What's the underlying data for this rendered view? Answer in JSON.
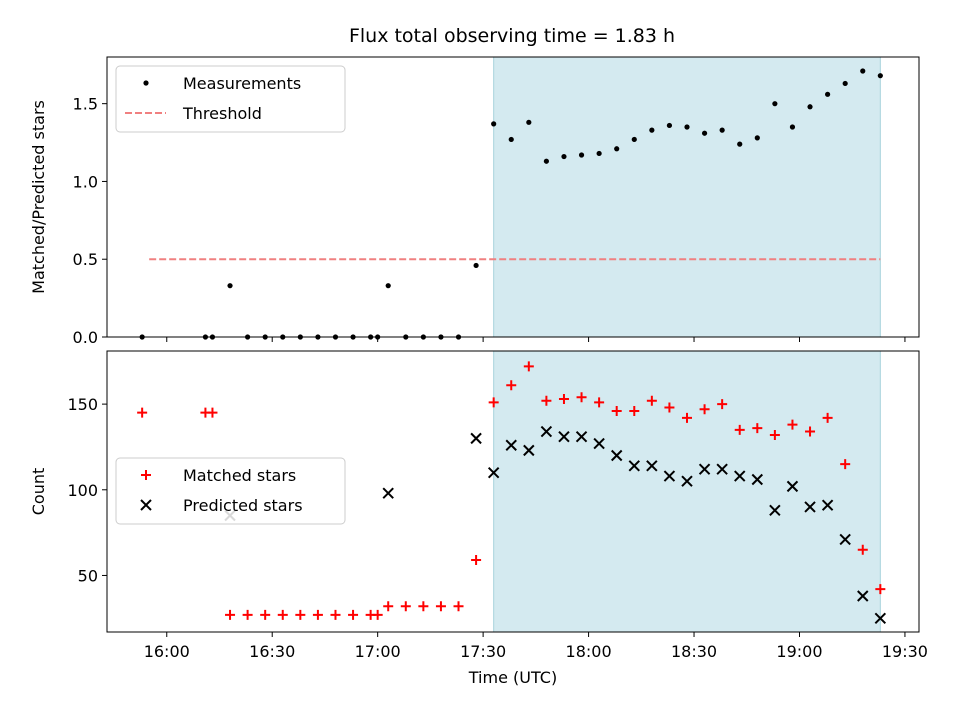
{
  "title": "Flux total observing time = 1.83 h",
  "colors": {
    "shade": "#d4eaf0",
    "shade_edge": "#a8d2dc",
    "threshold": "#f08080",
    "matched": "#ff0000",
    "predicted": "#000000"
  },
  "chart_data": [
    {
      "type": "scatter",
      "ylabel": "Matched/Predicted stars",
      "ylim": [
        0,
        1.8
      ],
      "yticks": [
        0.0,
        0.5,
        1.0,
        1.5
      ],
      "ytick_labels": [
        "0.0",
        "0.5",
        "1.0",
        "1.5"
      ],
      "legend": {
        "placement": "top-left",
        "entries": [
          "Measurements",
          "Threshold"
        ]
      },
      "shaded_region": {
        "x": [
          "17:33",
          "19:23"
        ]
      },
      "threshold": {
        "name": "Threshold",
        "value": 0.5,
        "x": [
          "15:55",
          "19:23"
        ]
      },
      "series": [
        {
          "name": "Measurements",
          "x": [
            "15:53",
            "16:11",
            "16:13",
            "16:18",
            "16:23",
            "16:28",
            "16:33",
            "16:38",
            "16:43",
            "16:48",
            "16:53",
            "16:58",
            "17:00",
            "17:03",
            "17:08",
            "17:13",
            "17:18",
            "17:23",
            "17:28",
            "17:33",
            "17:38",
            "17:43",
            "17:48",
            "17:53",
            "17:58",
            "18:03",
            "18:08",
            "18:13",
            "18:18",
            "18:23",
            "18:28",
            "18:33",
            "18:38",
            "18:43",
            "18:48",
            "18:53",
            "18:58",
            "19:03",
            "19:08",
            "19:13",
            "19:18",
            "19:23"
          ],
          "y": [
            0,
            0,
            0,
            0.33,
            0,
            0,
            0,
            0,
            0,
            0,
            0,
            0,
            0,
            0.33,
            0,
            0,
            0,
            0,
            0.46,
            1.37,
            1.27,
            1.38,
            1.13,
            1.16,
            1.17,
            1.18,
            1.21,
            1.27,
            1.33,
            1.36,
            1.35,
            1.31,
            1.33,
            1.24,
            1.28,
            1.5,
            1.35,
            1.48,
            1.56,
            1.63,
            1.71,
            1.68
          ]
        }
      ]
    },
    {
      "type": "scatter",
      "xlabel": "Time (UTC)",
      "ylabel": "Count",
      "ylim": [
        17,
        181
      ],
      "yticks": [
        50,
        100,
        150
      ],
      "ytick_labels": [
        "50",
        "100",
        "150"
      ],
      "xlim": [
        "15:43",
        "19:34"
      ],
      "xticks": [
        "16:00",
        "16:30",
        "17:00",
        "17:30",
        "18:00",
        "18:30",
        "19:00",
        "19:30"
      ],
      "legend": {
        "placement": "center-left",
        "entries": [
          "Matched stars",
          "Predicted stars"
        ]
      },
      "shaded_region": {
        "x": [
          "17:33",
          "19:23"
        ]
      },
      "series": [
        {
          "name": "Matched stars",
          "x": [
            "15:53",
            "16:11",
            "16:13",
            "16:18",
            "16:23",
            "16:28",
            "16:33",
            "16:38",
            "16:43",
            "16:48",
            "16:53",
            "16:58",
            "17:00",
            "17:03",
            "17:08",
            "17:13",
            "17:18",
            "17:23",
            "17:28",
            "17:33",
            "17:38",
            "17:43",
            "17:48",
            "17:53",
            "17:58",
            "18:03",
            "18:08",
            "18:13",
            "18:18",
            "18:23",
            "18:28",
            "18:33",
            "18:38",
            "18:43",
            "18:48",
            "18:53",
            "18:58",
            "19:03",
            "19:08",
            "19:13",
            "19:18",
            "19:23"
          ],
          "y": [
            145,
            145,
            145,
            27,
            27,
            27,
            27,
            27,
            27,
            27,
            27,
            27,
            27,
            32,
            32,
            32,
            32,
            32,
            59,
            151,
            161,
            172,
            152,
            153,
            154,
            151,
            146,
            146,
            152,
            148,
            142,
            147,
            150,
            135,
            136,
            132,
            138,
            134,
            142,
            115,
            65,
            42
          ]
        },
        {
          "name": "Predicted stars",
          "x": [
            "16:18",
            "17:03",
            "17:28",
            "17:33",
            "17:38",
            "17:43",
            "17:48",
            "17:53",
            "17:58",
            "18:03",
            "18:08",
            "18:13",
            "18:18",
            "18:23",
            "18:28",
            "18:33",
            "18:38",
            "18:43",
            "18:48",
            "18:53",
            "18:58",
            "19:03",
            "19:08",
            "19:13",
            "19:18",
            "19:23"
          ],
          "y": [
            85,
            98,
            130,
            110,
            126,
            123,
            134,
            131,
            131,
            127,
            120,
            114,
            114,
            108,
            105,
            112,
            112,
            108,
            106,
            88,
            102,
            90,
            91,
            71,
            38,
            25
          ]
        }
      ]
    }
  ]
}
